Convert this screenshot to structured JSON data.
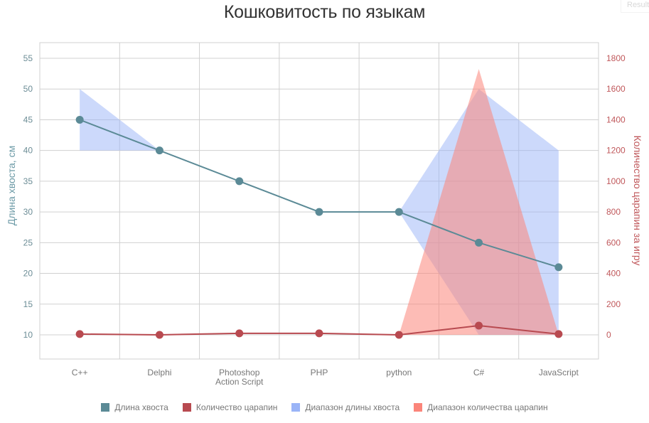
{
  "title": "Кошковитость по языкам",
  "corner_button": "Result",
  "axes": {
    "left_title": "Длина хвоста, см",
    "right_title": "Количество царапин за игру",
    "left_ticks": [
      "55",
      "50",
      "45",
      "40",
      "35",
      "30",
      "25",
      "20",
      "15",
      "10"
    ],
    "right_ticks": [
      "1800",
      "1600",
      "1400",
      "1200",
      "1000",
      "800",
      "600",
      "400",
      "200",
      "0"
    ]
  },
  "legend": [
    {
      "label": "Длина хвоста",
      "color": "#5b8a96"
    },
    {
      "label": "Количество царапин",
      "color": "#b84a50"
    },
    {
      "label": "Диапазон длины хвоста",
      "color": "#9ab4f7"
    },
    {
      "label": "Диапазон количества царапин",
      "color": "#fb857a"
    }
  ],
  "chart_data": {
    "type": "line",
    "title": "Кошковитость по языкам",
    "categories": [
      "C++",
      "Delphi",
      "Photoshop Action Script",
      "PHP",
      "python",
      "C#",
      "JavaScript"
    ],
    "category_labels": [
      [
        "C++"
      ],
      [
        "Delphi"
      ],
      [
        "Photoshop",
        "Action Script"
      ],
      [
        "PHP"
      ],
      [
        "python"
      ],
      [
        "C#"
      ],
      [
        "JavaScript"
      ]
    ],
    "xlabel": "",
    "ylabel": "Длина хвоста, см",
    "y2label": "Количество царапин за игру",
    "ylim": [
      6,
      58
    ],
    "y2lim": [
      -180,
      2000
    ],
    "grid": true,
    "legend_position": "bottom",
    "series": [
      {
        "name": "Длина хвоста",
        "type": "line",
        "axis": "left",
        "color": "#5b8a96",
        "values": [
          45,
          40,
          35,
          30,
          30,
          25,
          21
        ]
      },
      {
        "name": "Количество царапин",
        "type": "line",
        "axis": "right",
        "color": "#b84a50",
        "values": [
          5,
          0,
          10,
          10,
          0,
          60,
          5
        ]
      },
      {
        "name": "Диапазон длины хвоста",
        "type": "area-range",
        "axis": "left",
        "color": "#9ab4f7",
        "low": [
          40,
          40,
          null,
          null,
          30,
          10,
          10
        ],
        "high": [
          50,
          40,
          null,
          null,
          30,
          50,
          40
        ]
      },
      {
        "name": "Диапазон количества царапин",
        "type": "area-range",
        "axis": "right",
        "color": "#fb857a",
        "low": [
          null,
          null,
          null,
          null,
          0,
          0,
          0
        ],
        "high": [
          null,
          null,
          null,
          null,
          0,
          1730,
          0
        ]
      }
    ]
  }
}
